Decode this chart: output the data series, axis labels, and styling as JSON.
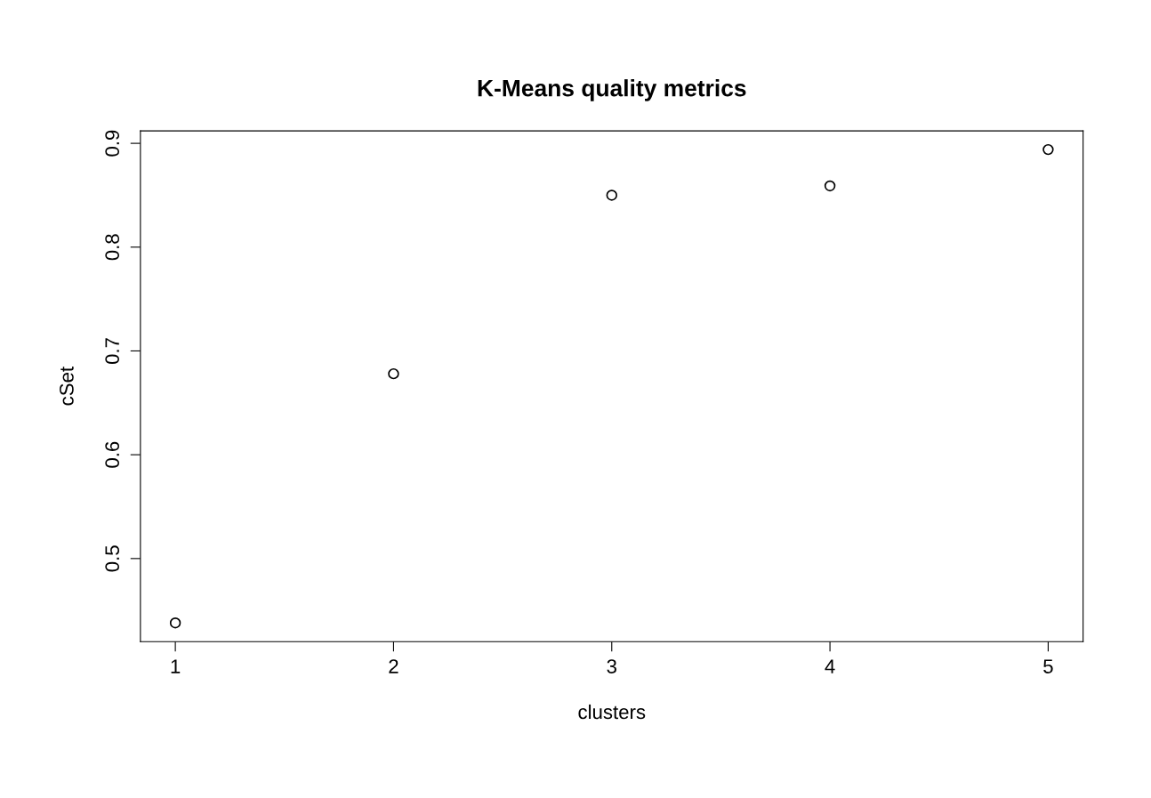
{
  "chart_data": {
    "type": "scatter",
    "title": "K-Means quality metrics",
    "xlabel": "clusters",
    "ylabel": "cSet",
    "x": [
      1,
      2,
      3,
      4,
      5
    ],
    "series": [
      {
        "color": "#000000",
        "values": [
          0.438,
          0.678,
          0.85,
          0.859,
          0.894
        ]
      }
    ],
    "xlim": [
      0.84,
      5.16
    ],
    "xticks": [
      1,
      2,
      3,
      4,
      5
    ],
    "ylim": [
      0.42,
      0.912
    ],
    "yticks": [
      0.5,
      0.6,
      0.7,
      0.8,
      0.9
    ],
    "marker": "circle",
    "grid": false
  }
}
